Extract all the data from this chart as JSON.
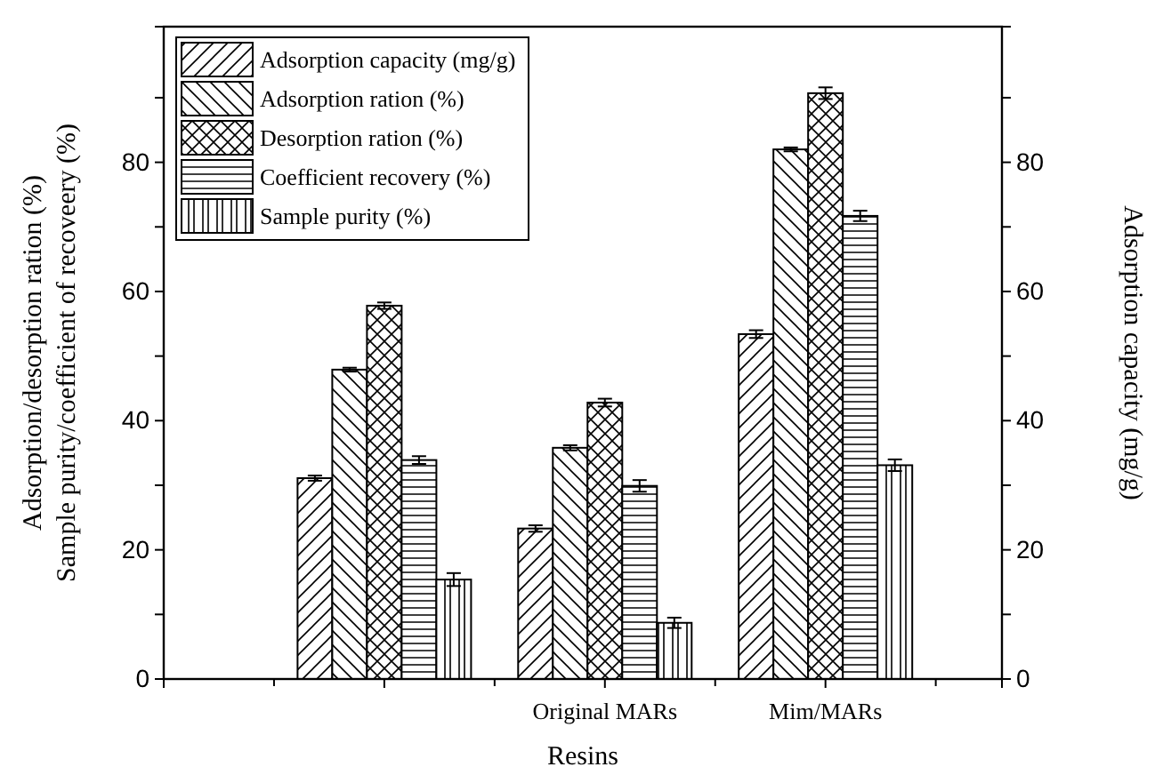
{
  "chart_data": {
    "type": "bar",
    "xlabel": "Resins",
    "ylabel": "Adsorption/desorption ration (%)\nSample purity/coefficient of recoveery (%)",
    "y2label": "Adsorption capacity (mg/g)",
    "categories": [
      null,
      "Original MARs",
      "Mim/MARs"
    ],
    "series": [
      {
        "name": "Adsorption capacity (mg/g)",
        "color": "#000000",
        "axis": "y2",
        "values": [
          31.1,
          23.3,
          53.4
        ],
        "errors": [
          0.4,
          0.5,
          0.6
        ]
      },
      {
        "name": "Adsorption ration (%)",
        "color": "#000000",
        "values": [
          47.9,
          35.8,
          82.0
        ],
        "errors": [
          0.3,
          0.4,
          0.3
        ]
      },
      {
        "name": "Desorption ration (%)",
        "color": "#000000",
        "values": [
          57.8,
          42.8,
          90.7
        ],
        "errors": [
          0.5,
          0.6,
          0.9
        ]
      },
      {
        "name": "Coefficient recovery (%)",
        "color": "#000000",
        "values": [
          33.9,
          29.9,
          71.7
        ],
        "errors": [
          0.6,
          0.9,
          0.8
        ]
      },
      {
        "name": "Sample purity (%)",
        "color": "#000000",
        "values": [
          15.4,
          8.7,
          33.1
        ],
        "errors": [
          1.0,
          0.8,
          0.9
        ]
      }
    ],
    "ylim": [
      0,
      101
    ],
    "yticks": [
      0,
      {
        "value": 10,
        "label": null
      },
      20,
      {
        "value": 30,
        "label": null
      },
      40,
      {
        "value": 50,
        "label": null
      },
      60,
      {
        "value": 70,
        "label": null
      },
      80,
      {
        "value": 90,
        "label": null
      }
    ],
    "y2lim": [
      0,
      101
    ],
    "y2ticks": [
      0,
      {
        "value": 10,
        "label": null
      },
      20,
      {
        "value": 30,
        "label": null
      },
      40,
      {
        "value": 50,
        "label": null
      },
      60,
      {
        "value": 70,
        "label": null
      },
      80,
      {
        "value": 90,
        "label": null
      }
    ],
    "legend": "top left",
    "grid": false
  }
}
